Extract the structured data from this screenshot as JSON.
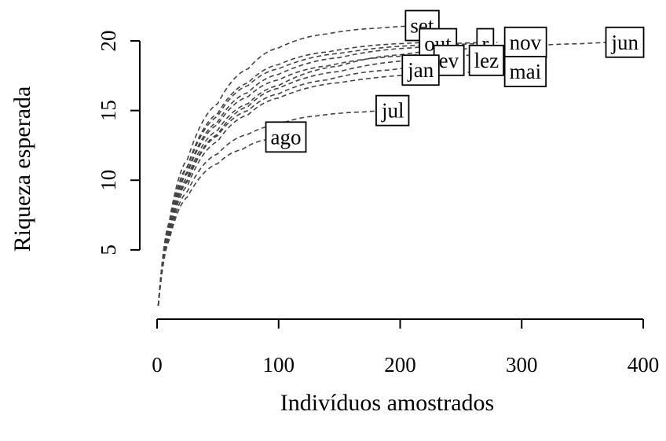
{
  "chart_data": {
    "type": "line",
    "xlabel": "Indivíduos amostrados",
    "ylabel": "Riqueza esperada",
    "xlim": [
      -15,
      405
    ],
    "ylim": [
      0,
      22
    ],
    "x_ticks": [
      0,
      100,
      200,
      300,
      400
    ],
    "y_ticks": [
      5,
      10,
      15,
      20
    ],
    "grid": false,
    "legend": "none",
    "series": [
      {
        "name": "set",
        "color": "#444444",
        "x": [
          1,
          10,
          25,
          50,
          75,
          100,
          140,
          180,
          222
        ],
        "y": [
          1,
          7,
          11.5,
          15.5,
          18,
          19.5,
          20.5,
          20.9,
          21.1
        ]
      },
      {
        "name": "out",
        "color": "#444444",
        "x": [
          1,
          10,
          25,
          50,
          75,
          100,
          140,
          200,
          232
        ],
        "y": [
          1,
          6.8,
          11,
          14.8,
          17,
          18.3,
          19.2,
          19.8,
          19.9
        ]
      },
      {
        "name": "fev",
        "color": "#444444",
        "x": [
          1,
          10,
          25,
          50,
          75,
          100,
          140,
          200,
          242
        ],
        "y": [
          1,
          6.5,
          10.5,
          14,
          16,
          17.2,
          18.2,
          18.9,
          19.1
        ]
      },
      {
        "name": "r",
        "color": "#444444",
        "x": [
          1,
          10,
          25,
          50,
          75,
          100,
          150,
          210,
          266
        ],
        "y": [
          1,
          6.6,
          10.6,
          14.2,
          16.3,
          17.6,
          18.8,
          19.5,
          19.8
        ]
      },
      {
        "name": "dez",
        "color": "#444444",
        "x": [
          1,
          10,
          25,
          50,
          75,
          100,
          150,
          210,
          267
        ],
        "y": [
          1,
          6.3,
          10,
          13.3,
          15.3,
          16.6,
          17.8,
          18.6,
          19
        ]
      },
      {
        "name": "nov",
        "color": "#444444",
        "x": [
          1,
          10,
          25,
          50,
          75,
          100,
          150,
          220,
          280
        ],
        "y": [
          1,
          6.7,
          10.9,
          14.6,
          16.8,
          18,
          19.1,
          19.7,
          19.9
        ]
      },
      {
        "name": "jan",
        "color": "#444444",
        "x": [
          1,
          10,
          25,
          50,
          75,
          100,
          140,
          190,
          218
        ],
        "y": [
          1,
          6.2,
          9.9,
          13.2,
          15,
          16.2,
          17.2,
          17.9,
          18.1
        ]
      },
      {
        "name": "mai",
        "color": "#444444",
        "x": [
          1,
          10,
          25,
          50,
          75,
          100,
          150,
          220,
          285
        ],
        "y": [
          1,
          6.1,
          9.6,
          12.8,
          14.7,
          15.9,
          17,
          17.6,
          17.8
        ]
      },
      {
        "name": "jul",
        "color": "#444444",
        "x": [
          1,
          10,
          25,
          50,
          75,
          100,
          130,
          170,
          190
        ],
        "y": [
          1,
          5.9,
          9.2,
          11.9,
          13.3,
          14,
          14.6,
          14.9,
          15
        ]
      },
      {
        "name": "ago",
        "color": "#444444",
        "x": [
          1,
          10,
          25,
          50,
          70,
          90,
          102
        ],
        "y": [
          1,
          5.7,
          8.8,
          11.2,
          12.2,
          12.9,
          13.1
        ]
      },
      {
        "name": "jun",
        "color": "#444444",
        "x": [
          1,
          10,
          25,
          50,
          75,
          100,
          150,
          200,
          250,
          300,
          350,
          380
        ],
        "y": [
          1,
          6.4,
          10.2,
          13.6,
          15.5,
          16.8,
          18.2,
          19,
          19.4,
          19.6,
          19.8,
          19.9
        ]
      }
    ],
    "labels": [
      {
        "text": "set",
        "x": 218,
        "y": 21.1
      },
      {
        "text": "out",
        "x": 231,
        "y": 19.8
      },
      {
        "text": "ev",
        "x": 240,
        "y": 18.6
      },
      {
        "text": "r",
        "x": 270,
        "y": 19.8
      },
      {
        "text": "lez",
        "x": 271,
        "y": 18.6
      },
      {
        "text": "nov",
        "x": 303,
        "y": 19.9
      },
      {
        "text": "jan",
        "x": 217,
        "y": 17.9
      },
      {
        "text": "mai",
        "x": 303,
        "y": 17.8
      },
      {
        "text": "jul",
        "x": 194,
        "y": 15
      },
      {
        "text": "ago",
        "x": 106,
        "y": 13.1
      },
      {
        "text": "jun",
        "x": 385,
        "y": 19.9
      }
    ]
  }
}
